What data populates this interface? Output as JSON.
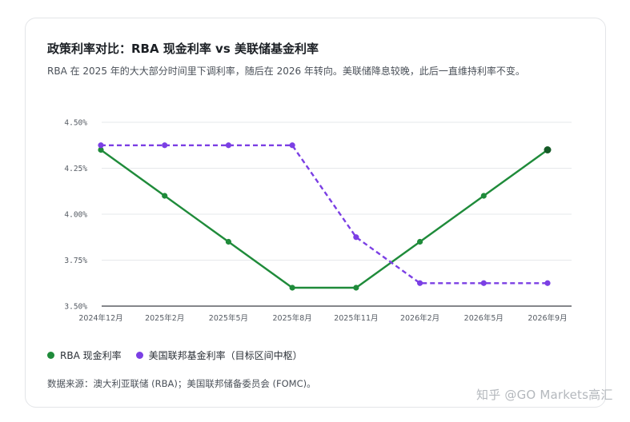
{
  "header": {
    "title": "政策利率对比：RBA 现金利率 vs 美联储基金利率",
    "subtitle": "RBA 在 2025 年的大大部分时间里下调利率，随后在 2026 年转向。美联储降息较晚，此后一直维持利率不变。"
  },
  "footer": {
    "source": "数据来源：澳大利亚联储 (RBA)；美国联邦储备委员会 (FOMC)。",
    "watermark": "知乎 @GO Markets高汇"
  },
  "chart_data": {
    "type": "line",
    "categories": [
      "2024年12月",
      "2025年2月",
      "2025年5月",
      "2025年8月",
      "2025年11月",
      "2026年2月",
      "2026年5月",
      "2026年9月"
    ],
    "ylim": [
      3.5,
      4.5
    ],
    "yticks": [
      "3.50%",
      "3.75%",
      "4.00%",
      "4.25%",
      "4.50%"
    ],
    "grid": true,
    "legend_position": "bottom-left",
    "series": [
      {
        "name": "RBA 现金利率",
        "color": "#1f8b3a",
        "style": "solid",
        "values": [
          4.35,
          4.1,
          3.85,
          3.6,
          3.6,
          3.85,
          4.1,
          4.35
        ]
      },
      {
        "name": "美国联邦基金利率（目标区间中枢）",
        "color": "#7b3fe4",
        "style": "dashed",
        "values": [
          4.375,
          4.375,
          4.375,
          4.375,
          3.875,
          3.625,
          3.625,
          3.625
        ]
      }
    ]
  }
}
